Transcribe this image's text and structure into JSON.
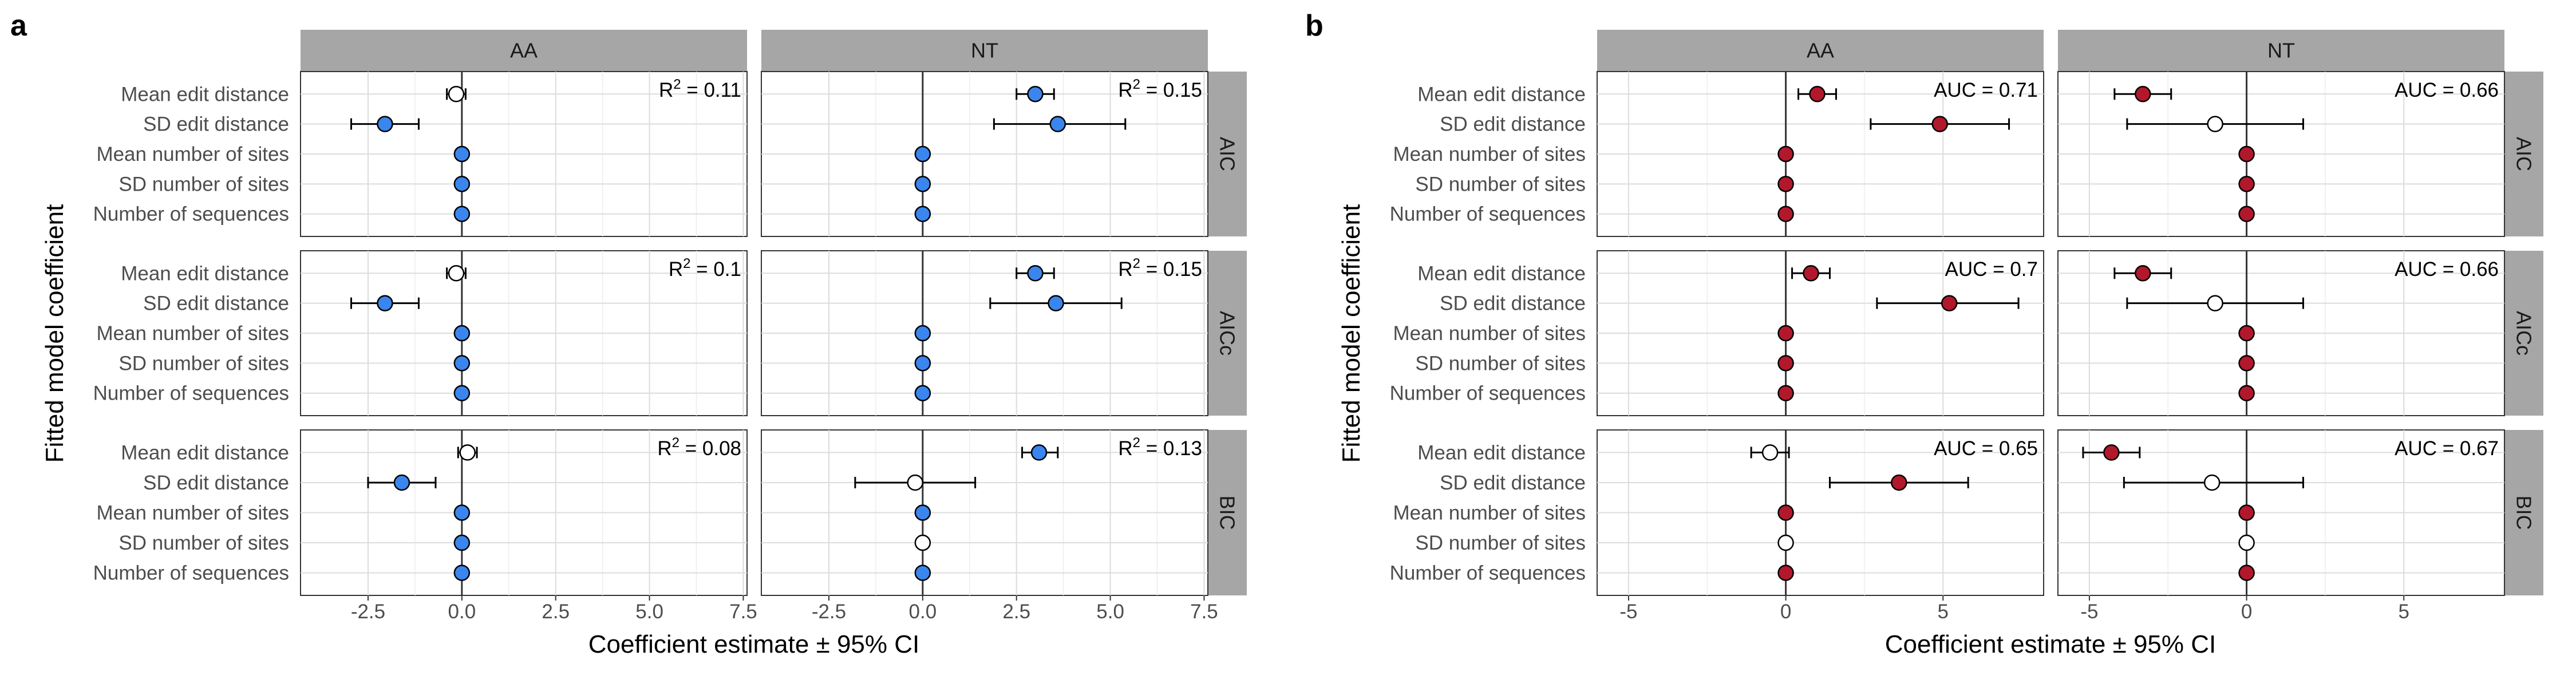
{
  "chart_data": [
    {
      "panel_label": "a",
      "type": "scatter",
      "xlabel": "Coefficient estimate ± 95% CI",
      "ylabel": "Fitted model coefficient",
      "columns": [
        "AA",
        "NT"
      ],
      "rows": [
        "AIC",
        "AICc",
        "BIC"
      ],
      "categories": [
        "Mean edit distance",
        "SD edit distance",
        "Mean number of sites",
        "SD number of sites",
        "Number of sequences"
      ],
      "xlim": [
        -4.3,
        7.6
      ],
      "xticks": [
        -2.5,
        0.0,
        2.5,
        5.0,
        7.5
      ],
      "xtick_labels": [
        "-2.5",
        "0.0",
        "2.5",
        "5.0",
        "7.5"
      ],
      "grid": true,
      "significant_color": "#3a86ee",
      "nonsignificant_color": "#ffffff",
      "stat_prefix": "R",
      "stat_superscript": "2",
      "stat_joiner": " = ",
      "panels": [
        {
          "column": "AA",
          "row": "AIC",
          "stat": "0.11",
          "points": [
            {
              "label": "Mean edit distance",
              "estimate": -0.15,
              "lo": -0.4,
              "hi": 0.1,
              "significant": false
            },
            {
              "label": "SD edit distance",
              "estimate": -2.05,
              "lo": -2.95,
              "hi": -1.15,
              "significant": true
            },
            {
              "label": "Mean number of sites",
              "estimate": 0.0,
              "lo": 0.0,
              "hi": 0.0,
              "significant": true
            },
            {
              "label": "SD number of sites",
              "estimate": 0.0,
              "lo": 0.0,
              "hi": 0.0,
              "significant": true
            },
            {
              "label": "Number of sequences",
              "estimate": 0.0,
              "lo": 0.0,
              "hi": 0.0,
              "significant": true
            }
          ]
        },
        {
          "column": "NT",
          "row": "AIC",
          "stat": "0.15",
          "points": [
            {
              "label": "Mean edit distance",
              "estimate": 3.0,
              "lo": 2.5,
              "hi": 3.5,
              "significant": true
            },
            {
              "label": "SD edit distance",
              "estimate": 3.6,
              "lo": 1.9,
              "hi": 5.4,
              "significant": true
            },
            {
              "label": "Mean number of sites",
              "estimate": 0.0,
              "lo": 0.0,
              "hi": 0.0,
              "significant": true
            },
            {
              "label": "SD number of sites",
              "estimate": 0.0,
              "lo": 0.0,
              "hi": 0.0,
              "significant": true
            },
            {
              "label": "Number of sequences",
              "estimate": 0.0,
              "lo": 0.0,
              "hi": 0.0,
              "significant": true
            }
          ]
        },
        {
          "column": "AA",
          "row": "AICc",
          "stat": "0.1",
          "points": [
            {
              "label": "Mean edit distance",
              "estimate": -0.15,
              "lo": -0.4,
              "hi": 0.1,
              "significant": false
            },
            {
              "label": "SD edit distance",
              "estimate": -2.05,
              "lo": -2.95,
              "hi": -1.15,
              "significant": true
            },
            {
              "label": "Mean number of sites",
              "estimate": 0.0,
              "lo": 0.0,
              "hi": 0.0,
              "significant": true
            },
            {
              "label": "SD number of sites",
              "estimate": 0.0,
              "lo": 0.0,
              "hi": 0.0,
              "significant": true
            },
            {
              "label": "Number of sequences",
              "estimate": 0.0,
              "lo": 0.0,
              "hi": 0.0,
              "significant": true
            }
          ]
        },
        {
          "column": "NT",
          "row": "AICc",
          "stat": "0.15",
          "points": [
            {
              "label": "Mean edit distance",
              "estimate": 3.0,
              "lo": 2.5,
              "hi": 3.5,
              "significant": true
            },
            {
              "label": "SD edit distance",
              "estimate": 3.55,
              "lo": 1.8,
              "hi": 5.3,
              "significant": true
            },
            {
              "label": "Mean number of sites",
              "estimate": 0.0,
              "lo": 0.0,
              "hi": 0.0,
              "significant": true
            },
            {
              "label": "SD number of sites",
              "estimate": 0.0,
              "lo": 0.0,
              "hi": 0.0,
              "significant": true
            },
            {
              "label": "Number of sequences",
              "estimate": 0.0,
              "lo": 0.0,
              "hi": 0.0,
              "significant": true
            }
          ]
        },
        {
          "column": "AA",
          "row": "BIC",
          "stat": "0.08",
          "points": [
            {
              "label": "Mean edit distance",
              "estimate": 0.15,
              "lo": -0.1,
              "hi": 0.4,
              "significant": false
            },
            {
              "label": "SD edit distance",
              "estimate": -1.6,
              "lo": -2.5,
              "hi": -0.7,
              "significant": true
            },
            {
              "label": "Mean number of sites",
              "estimate": 0.0,
              "lo": 0.0,
              "hi": 0.0,
              "significant": true
            },
            {
              "label": "SD number of sites",
              "estimate": 0.0,
              "lo": 0.0,
              "hi": 0.0,
              "significant": true
            },
            {
              "label": "Number of sequences",
              "estimate": 0.0,
              "lo": 0.0,
              "hi": 0.0,
              "significant": true
            }
          ]
        },
        {
          "column": "NT",
          "row": "BIC",
          "stat": "0.13",
          "points": [
            {
              "label": "Mean edit distance",
              "estimate": 3.1,
              "lo": 2.65,
              "hi": 3.6,
              "significant": true
            },
            {
              "label": "SD edit distance",
              "estimate": -0.2,
              "lo": -1.8,
              "hi": 1.4,
              "significant": false
            },
            {
              "label": "Mean number of sites",
              "estimate": 0.0,
              "lo": 0.0,
              "hi": 0.0,
              "significant": true
            },
            {
              "label": "SD number of sites",
              "estimate": 0.0,
              "lo": 0.0,
              "hi": 0.0,
              "significant": false
            },
            {
              "label": "Number of sequences",
              "estimate": 0.0,
              "lo": 0.0,
              "hi": 0.0,
              "significant": true
            }
          ]
        }
      ]
    },
    {
      "panel_label": "b",
      "type": "scatter",
      "xlabel": "Coefficient estimate ± 95% CI",
      "ylabel": "Fitted model coefficient",
      "columns": [
        "AA",
        "NT"
      ],
      "rows": [
        "AIC",
        "AICc",
        "BIC"
      ],
      "categories": [
        "Mean edit distance",
        "SD edit distance",
        "Mean number of sites",
        "SD number of sites",
        "Number of sequences"
      ],
      "xlim": [
        -6.0,
        8.2
      ],
      "xticks": [
        -5,
        0,
        5
      ],
      "xtick_labels": [
        "-5",
        "0",
        "5"
      ],
      "grid": true,
      "significant_color": "#b2182b",
      "nonsignificant_color": "#ffffff",
      "stat_prefix": "AUC",
      "stat_superscript": "",
      "stat_joiner": " =  ",
      "panels": [
        {
          "column": "AA",
          "row": "AIC",
          "stat": "0.71",
          "points": [
            {
              "label": "Mean edit distance",
              "estimate": 1.0,
              "lo": 0.4,
              "hi": 1.6,
              "significant": true
            },
            {
              "label": "SD edit distance",
              "estimate": 4.9,
              "lo": 2.7,
              "hi": 7.1,
              "significant": true
            },
            {
              "label": "Mean number of sites",
              "estimate": 0.0,
              "lo": 0.0,
              "hi": 0.0,
              "significant": true
            },
            {
              "label": "SD number of sites",
              "estimate": 0.0,
              "lo": 0.0,
              "hi": 0.0,
              "significant": true
            },
            {
              "label": "Number of sequences",
              "estimate": 0.0,
              "lo": 0.0,
              "hi": 0.0,
              "significant": true
            }
          ]
        },
        {
          "column": "NT",
          "row": "AIC",
          "stat": "0.66",
          "points": [
            {
              "label": "Mean edit distance",
              "estimate": -3.3,
              "lo": -4.2,
              "hi": -2.4,
              "significant": true
            },
            {
              "label": "SD edit distance",
              "estimate": -1.0,
              "lo": -3.8,
              "hi": 1.8,
              "significant": false
            },
            {
              "label": "Mean number of sites",
              "estimate": 0.0,
              "lo": 0.0,
              "hi": 0.0,
              "significant": true
            },
            {
              "label": "SD number of sites",
              "estimate": 0.0,
              "lo": 0.0,
              "hi": 0.0,
              "significant": true
            },
            {
              "label": "Number of sequences",
              "estimate": 0.0,
              "lo": 0.0,
              "hi": 0.0,
              "significant": true
            }
          ]
        },
        {
          "column": "AA",
          "row": "AICc",
          "stat": "0.7",
          "points": [
            {
              "label": "Mean edit distance",
              "estimate": 0.8,
              "lo": 0.2,
              "hi": 1.4,
              "significant": true
            },
            {
              "label": "SD edit distance",
              "estimate": 5.2,
              "lo": 2.9,
              "hi": 7.4,
              "significant": true
            },
            {
              "label": "Mean number of sites",
              "estimate": 0.0,
              "lo": 0.0,
              "hi": 0.0,
              "significant": true
            },
            {
              "label": "SD number of sites",
              "estimate": 0.0,
              "lo": 0.0,
              "hi": 0.0,
              "significant": true
            },
            {
              "label": "Number of sequences",
              "estimate": 0.0,
              "lo": 0.0,
              "hi": 0.0,
              "significant": true
            }
          ]
        },
        {
          "column": "NT",
          "row": "AICc",
          "stat": "0.66",
          "points": [
            {
              "label": "Mean edit distance",
              "estimate": -3.3,
              "lo": -4.2,
              "hi": -2.4,
              "significant": true
            },
            {
              "label": "SD edit distance",
              "estimate": -1.0,
              "lo": -3.8,
              "hi": 1.8,
              "significant": false
            },
            {
              "label": "Mean number of sites",
              "estimate": 0.0,
              "lo": 0.0,
              "hi": 0.0,
              "significant": true
            },
            {
              "label": "SD number of sites",
              "estimate": 0.0,
              "lo": 0.0,
              "hi": 0.0,
              "significant": true
            },
            {
              "label": "Number of sequences",
              "estimate": 0.0,
              "lo": 0.0,
              "hi": 0.0,
              "significant": true
            }
          ]
        },
        {
          "column": "AA",
          "row": "BIC",
          "stat": "0.65",
          "points": [
            {
              "label": "Mean edit distance",
              "estimate": -0.5,
              "lo": -1.1,
              "hi": 0.1,
              "significant": false
            },
            {
              "label": "SD edit distance",
              "estimate": 3.6,
              "lo": 1.4,
              "hi": 5.8,
              "significant": true
            },
            {
              "label": "Mean number of sites",
              "estimate": 0.0,
              "lo": 0.0,
              "hi": 0.0,
              "significant": true
            },
            {
              "label": "SD number of sites",
              "estimate": 0.0,
              "lo": 0.0,
              "hi": 0.0,
              "significant": false
            },
            {
              "label": "Number of sequences",
              "estimate": 0.0,
              "lo": 0.0,
              "hi": 0.0,
              "significant": true
            }
          ]
        },
        {
          "column": "NT",
          "row": "BIC",
          "stat": "0.67",
          "points": [
            {
              "label": "Mean edit distance",
              "estimate": -4.3,
              "lo": -5.2,
              "hi": -3.4,
              "significant": true
            },
            {
              "label": "SD edit distance",
              "estimate": -1.1,
              "lo": -3.9,
              "hi": 1.8,
              "significant": false
            },
            {
              "label": "Mean number of sites",
              "estimate": 0.0,
              "lo": 0.0,
              "hi": 0.0,
              "significant": true
            },
            {
              "label": "SD number of sites",
              "estimate": 0.0,
              "lo": 0.0,
              "hi": 0.0,
              "significant": false
            },
            {
              "label": "Number of sequences",
              "estimate": 0.0,
              "lo": 0.0,
              "hi": 0.0,
              "significant": true
            }
          ]
        }
      ]
    }
  ]
}
